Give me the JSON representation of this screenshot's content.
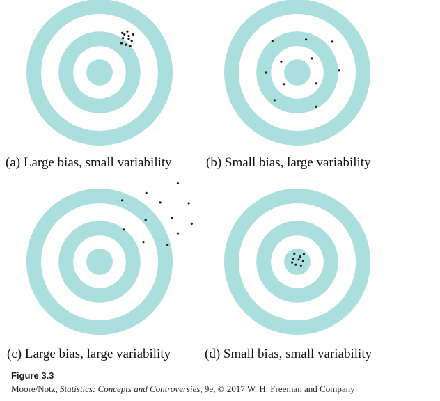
{
  "colors": {
    "ring": "#abdfdd",
    "background": "#ffffff",
    "dot": "#1a1a1a",
    "text": "#111111"
  },
  "targets": [
    {
      "id": "a",
      "caption": "(a) Large bias, small variability",
      "shots": [
        [
          0.4,
          -0.5
        ],
        [
          0.32,
          -0.47
        ],
        [
          0.36,
          -0.38
        ],
        [
          0.44,
          -0.43
        ],
        [
          0.3,
          -0.4
        ],
        [
          0.38,
          -0.56
        ],
        [
          0.46,
          -0.52
        ],
        [
          0.34,
          -0.52
        ],
        [
          0.42,
          -0.36
        ],
        [
          0.4,
          -0.46
        ],
        [
          0.31,
          -0.54
        ]
      ]
    },
    {
      "id": "b",
      "caption": "(b) Small bias, large variability",
      "shots": [
        [
          -0.34,
          -0.43
        ],
        [
          0.12,
          -0.45
        ],
        [
          0.48,
          -0.42
        ],
        [
          -0.22,
          -0.15
        ],
        [
          0.2,
          -0.19
        ],
        [
          -0.43,
          0.0
        ],
        [
          0.57,
          -0.03
        ],
        [
          -0.18,
          0.16
        ],
        [
          0.26,
          0.15
        ],
        [
          -0.31,
          0.38
        ],
        [
          0.26,
          0.47
        ]
      ]
    },
    {
      "id": "c",
      "caption": "(c) Large bias, large variability",
      "shots": [
        [
          0.64,
          -0.94
        ],
        [
          1.07,
          -1.07
        ],
        [
          0.31,
          -0.84
        ],
        [
          0.83,
          -0.81
        ],
        [
          1.22,
          -0.8
        ],
        [
          0.99,
          -0.6
        ],
        [
          0.63,
          -0.57
        ],
        [
          1.26,
          -0.52
        ],
        [
          0.33,
          -0.44
        ],
        [
          1.07,
          -0.39
        ],
        [
          0.6,
          -0.27
        ],
        [
          0.93,
          -0.23
        ]
      ]
    },
    {
      "id": "d",
      "caption": "(d) Small bias, small variability",
      "shots": [
        [
          -0.04,
          -0.11
        ],
        [
          0.04,
          -0.07
        ],
        [
          0.09,
          -0.1
        ],
        [
          -0.06,
          -0.04
        ],
        [
          0.02,
          -0.03
        ],
        [
          0.08,
          -0.01
        ],
        [
          -0.02,
          0.04
        ],
        [
          0.05,
          0.05
        ],
        [
          -0.07,
          0.01
        ]
      ]
    }
  ],
  "figure": {
    "label": "Figure 3.3",
    "credit_authors": "Moore/Notz, ",
    "credit_title": "Statistics: Concepts and Controversies",
    "credit_rest": ", 9e, © 2017 W. H. Freeman and Company"
  }
}
